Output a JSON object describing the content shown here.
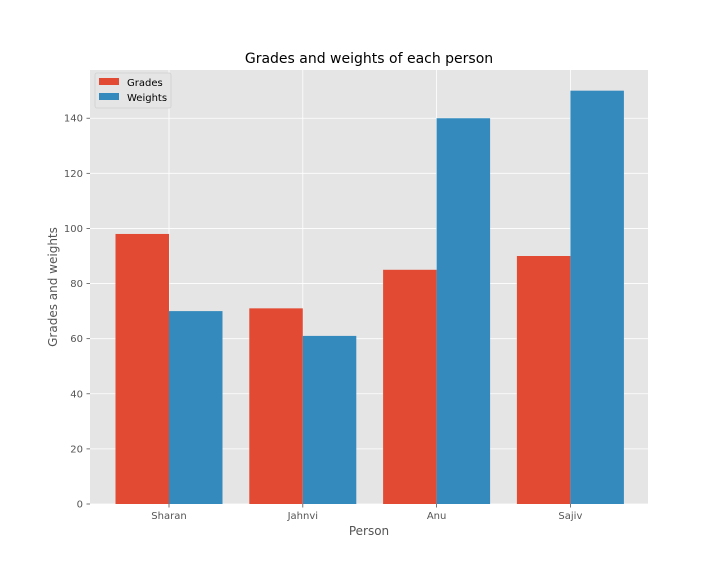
{
  "chart_data": {
    "type": "bar",
    "title": "Grades and weights of each person",
    "xlabel": "Person",
    "ylabel": "Grades and weights",
    "categories": [
      "Sharan",
      "Jahnvi",
      "Anu",
      "Sajiv"
    ],
    "series": [
      {
        "name": "Grades",
        "values": [
          98,
          71,
          85,
          90
        ],
        "color": "#E24A33"
      },
      {
        "name": "Weights",
        "values": [
          70,
          61,
          140,
          150
        ],
        "color": "#348ABD"
      }
    ],
    "ylim": [
      0,
      157.5
    ],
    "yticks": [
      "0",
      "20",
      "40",
      "60",
      "80",
      "100",
      "120",
      "140"
    ],
    "grid": true,
    "legend_position": "top-left",
    "colors": {
      "plot_background": "#E5E5E5",
      "grid": "#FFFFFF",
      "tick_text": "#555555"
    }
  }
}
